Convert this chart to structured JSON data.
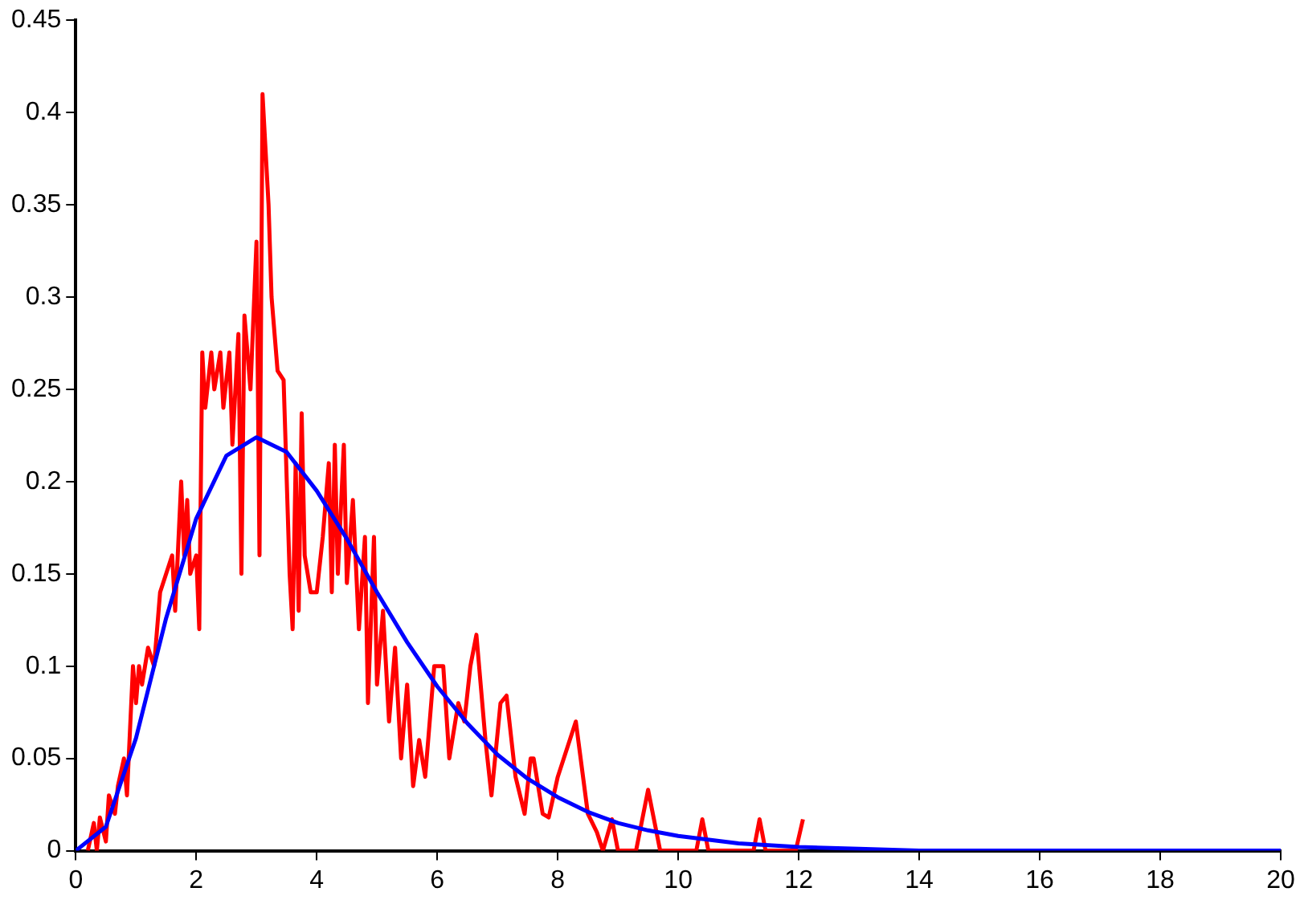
{
  "chart_data": {
    "type": "line",
    "xlim": [
      0,
      20
    ],
    "ylim": [
      0,
      0.45
    ],
    "xticks": [
      0,
      2,
      4,
      6,
      8,
      10,
      12,
      14,
      16,
      18,
      20
    ],
    "yticks": [
      0,
      0.05,
      0.1,
      0.15,
      0.2,
      0.25,
      0.3,
      0.35,
      0.4,
      0.45
    ],
    "grid": false,
    "legend": false,
    "marker": "none",
    "line_style": "solid",
    "series": [
      {
        "color": "#0000ff",
        "x": [
          0,
          0.5,
          1,
          1.5,
          2,
          2.5,
          3,
          3.5,
          4,
          4.5,
          5,
          5.5,
          6,
          6.5,
          7,
          7.5,
          8,
          8.5,
          9,
          9.5,
          10,
          11,
          12,
          13,
          14,
          20
        ],
        "values": [
          0,
          0.013,
          0.061,
          0.126,
          0.18,
          0.214,
          0.224,
          0.216,
          0.195,
          0.169,
          0.14,
          0.113,
          0.089,
          0.069,
          0.052,
          0.039,
          0.029,
          0.021,
          0.015,
          0.011,
          0.008,
          0.004,
          0.002,
          0.001,
          0,
          0
        ]
      },
      {
        "color": "#ff0000",
        "x": [
          0.2,
          0.3,
          0.35,
          0.4,
          0.5,
          0.55,
          0.65,
          0.7,
          0.8,
          0.85,
          0.95,
          1.0,
          1.05,
          1.1,
          1.2,
          1.3,
          1.4,
          1.5,
          1.6,
          1.65,
          1.75,
          1.8,
          1.85,
          1.9,
          2.0,
          2.05,
          2.1,
          2.15,
          2.25,
          2.3,
          2.4,
          2.45,
          2.55,
          2.6,
          2.7,
          2.75,
          2.8,
          2.9,
          3.0,
          3.05,
          3.1,
          3.2,
          3.25,
          3.35,
          3.45,
          3.55,
          3.6,
          3.65,
          3.7,
          3.75,
          3.8,
          3.9,
          4.0,
          4.1,
          4.2,
          4.25,
          4.3,
          4.35,
          4.45,
          4.5,
          4.6,
          4.7,
          4.8,
          4.85,
          4.95,
          5.0,
          5.1,
          5.2,
          5.3,
          5.4,
          5.5,
          5.6,
          5.7,
          5.8,
          5.95,
          6.1,
          6.2,
          6.35,
          6.45,
          6.55,
          6.65,
          6.8,
          6.9,
          7.05,
          7.15,
          7.3,
          7.45,
          7.55,
          7.6,
          7.75,
          7.85,
          8.0,
          8.3,
          8.5,
          8.65,
          8.75,
          8.9,
          9.0,
          9.3,
          9.5,
          9.7,
          10.3,
          10.4,
          10.5,
          11.25,
          11.35,
          11.45,
          11.95,
          12.07
        ],
        "values": [
          0,
          0.015,
          0,
          0.018,
          0.005,
          0.03,
          0.02,
          0.035,
          0.05,
          0.03,
          0.1,
          0.08,
          0.1,
          0.09,
          0.11,
          0.1,
          0.14,
          0.15,
          0.16,
          0.13,
          0.2,
          0.16,
          0.19,
          0.15,
          0.16,
          0.12,
          0.27,
          0.24,
          0.27,
          0.25,
          0.27,
          0.24,
          0.27,
          0.22,
          0.28,
          0.15,
          0.29,
          0.25,
          0.33,
          0.16,
          0.41,
          0.35,
          0.3,
          0.26,
          0.255,
          0.15,
          0.12,
          0.21,
          0.13,
          0.237,
          0.16,
          0.14,
          0.14,
          0.17,
          0.21,
          0.14,
          0.22,
          0.15,
          0.22,
          0.145,
          0.19,
          0.12,
          0.17,
          0.08,
          0.17,
          0.09,
          0.13,
          0.07,
          0.11,
          0.05,
          0.09,
          0.035,
          0.06,
          0.04,
          0.1,
          0.1,
          0.05,
          0.08,
          0.07,
          0.1,
          0.117,
          0.06,
          0.03,
          0.08,
          0.084,
          0.04,
          0.02,
          0.05,
          0.05,
          0.02,
          0.018,
          0.04,
          0.07,
          0.02,
          0.01,
          0,
          0.017,
          0,
          0,
          0.033,
          0,
          0,
          0.017,
          0,
          0,
          0.017,
          0,
          0,
          0.017
        ]
      }
    ]
  }
}
